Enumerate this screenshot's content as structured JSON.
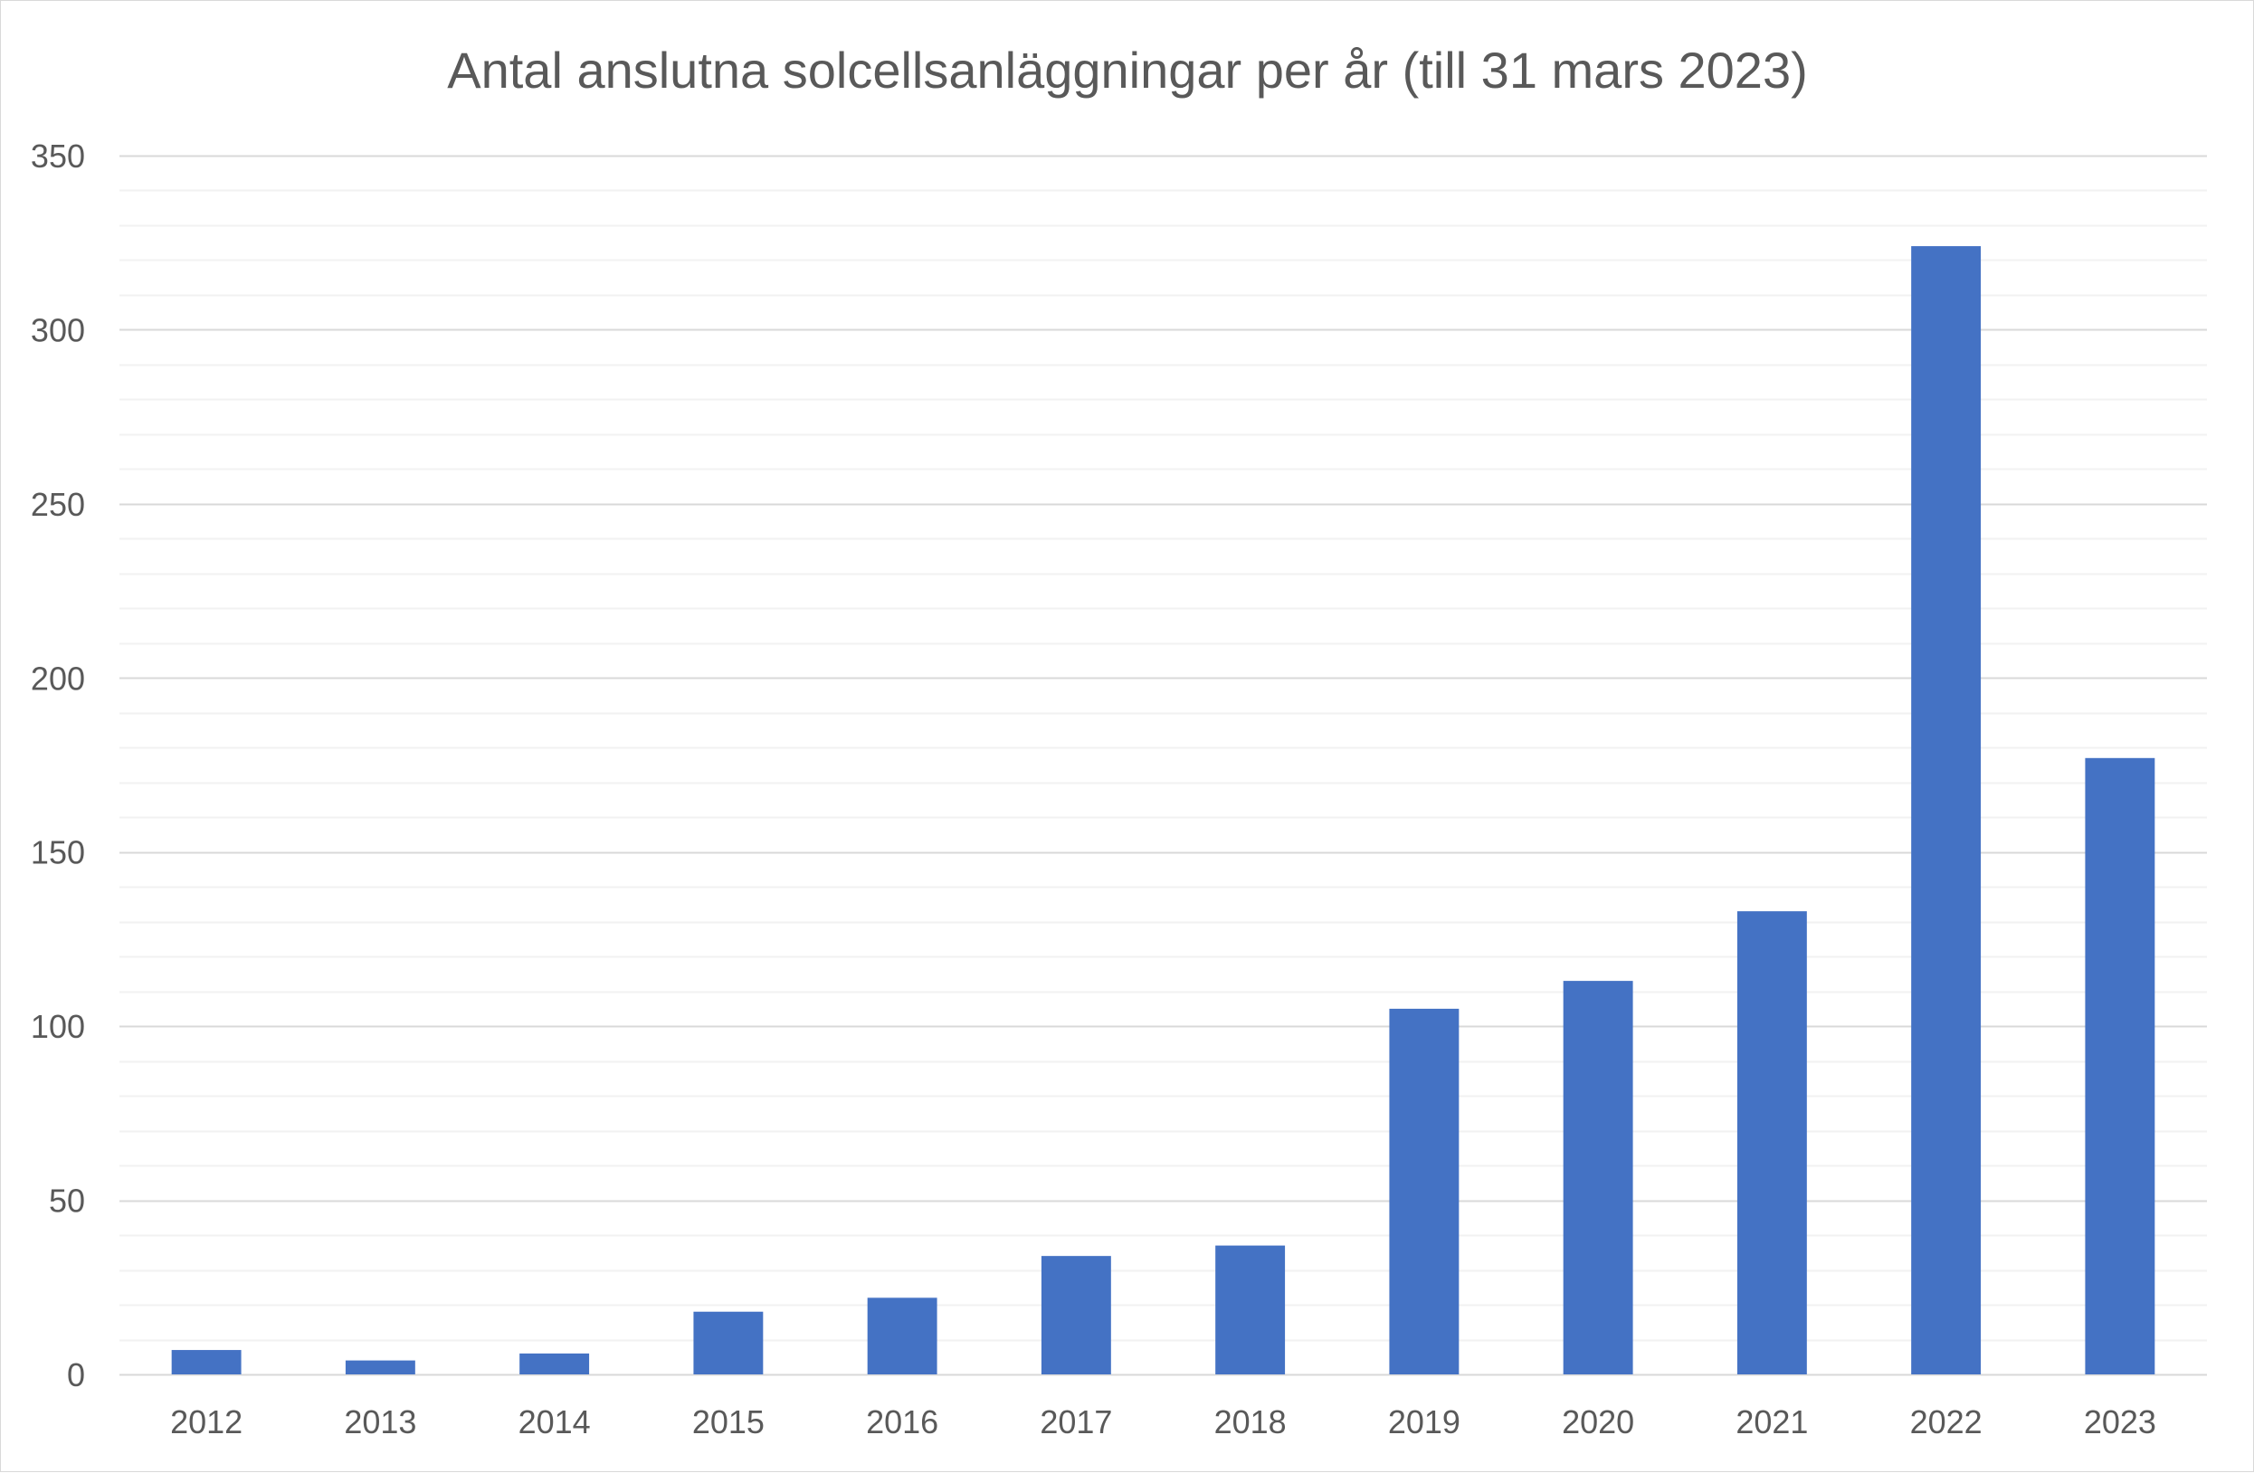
{
  "chart_data": {
    "type": "bar",
    "title": "Antal anslutna solcellsanläggningar per år (till 31 mars 2023)",
    "xlabel": "",
    "ylabel": "",
    "categories": [
      "2012",
      "2013",
      "2014",
      "2015",
      "2016",
      "2017",
      "2018",
      "2019",
      "2020",
      "2021",
      "2022",
      "2023"
    ],
    "values": [
      7,
      4,
      6,
      18,
      22,
      34,
      37,
      105,
      113,
      133,
      324,
      177
    ],
    "ylim": [
      0,
      350
    ],
    "y_ticks": [
      0,
      50,
      100,
      150,
      200,
      250,
      300,
      350
    ],
    "minor_step": 10,
    "grid": true,
    "legend": "none",
    "colors": {
      "bar": "#4472C4",
      "major_grid": "#d9d9d9",
      "minor_grid": "#f2f2f2",
      "axis": "#d9d9d9",
      "text": "#595959"
    }
  }
}
